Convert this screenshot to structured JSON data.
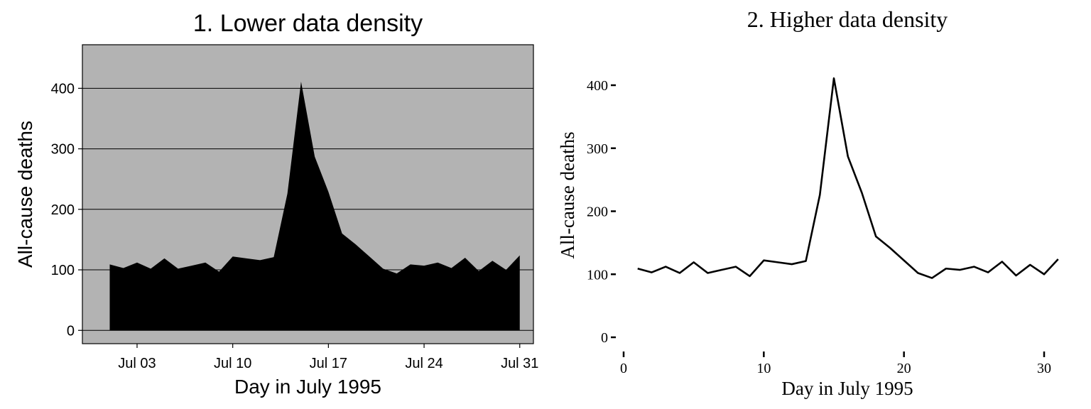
{
  "chart_data": [
    {
      "type": "area",
      "title": "1. Lower data density",
      "xlabel": "Day in July 1995",
      "ylabel": "All-cause deaths",
      "x_unit": "date",
      "x": [
        "1995-07-01",
        "1995-07-02",
        "1995-07-03",
        "1995-07-04",
        "1995-07-05",
        "1995-07-06",
        "1995-07-07",
        "1995-07-08",
        "1995-07-09",
        "1995-07-10",
        "1995-07-11",
        "1995-07-12",
        "1995-07-13",
        "1995-07-14",
        "1995-07-15",
        "1995-07-16",
        "1995-07-17",
        "1995-07-18",
        "1995-07-19",
        "1995-07-20",
        "1995-07-21",
        "1995-07-22",
        "1995-07-23",
        "1995-07-24",
        "1995-07-25",
        "1995-07-26",
        "1995-07-27",
        "1995-07-28",
        "1995-07-29",
        "1995-07-30",
        "1995-07-31"
      ],
      "values": [
        109,
        103,
        112,
        102,
        119,
        102,
        107,
        112,
        97,
        122,
        119,
        116,
        121,
        226,
        411,
        287,
        229,
        160,
        142,
        122,
        102,
        94,
        109,
        107,
        112,
        103,
        120,
        98,
        115,
        100,
        124
      ],
      "xlim": [
        "1995-06-29",
        "1995-08-01"
      ],
      "ylim": [
        -22,
        472
      ],
      "xticks": [
        "1995-07-03",
        "1995-07-10",
        "1995-07-17",
        "1995-07-24",
        "1995-07-31"
      ],
      "xtick_labels": [
        "Jul 03",
        "Jul 10",
        "Jul 17",
        "Jul 24",
        "Jul 31"
      ],
      "yticks": [
        0,
        100,
        200,
        300,
        400
      ],
      "ytick_labels": [
        "0",
        "100",
        "200",
        "300",
        "400"
      ],
      "grid": "horizontal",
      "legend": "none",
      "colors": {
        "panel": "#b3b3b3",
        "fill": "#000000",
        "grid": "#000000",
        "text": "#000000"
      }
    },
    {
      "type": "line",
      "title": "2. Higher data density",
      "xlabel": "Day in July 1995",
      "ylabel": "All-cause deaths",
      "x": [
        1,
        2,
        3,
        4,
        5,
        6,
        7,
        8,
        9,
        10,
        11,
        12,
        13,
        14,
        15,
        16,
        17,
        18,
        19,
        20,
        21,
        22,
        23,
        24,
        25,
        26,
        27,
        28,
        29,
        30,
        31
      ],
      "values": [
        109,
        103,
        112,
        102,
        119,
        102,
        107,
        112,
        97,
        122,
        119,
        116,
        121,
        226,
        411,
        287,
        229,
        160,
        142,
        122,
        102,
        94,
        109,
        107,
        112,
        103,
        120,
        98,
        115,
        100,
        124
      ],
      "xlim": [
        -0.5,
        31.5
      ],
      "ylim": [
        -22,
        472
      ],
      "xticks": [
        0,
        10,
        20,
        30
      ],
      "xtick_labels": [
        "0",
        "10",
        "20",
        "30"
      ],
      "yticks": [
        0,
        100,
        200,
        300,
        400
      ],
      "ytick_labels": [
        "0",
        "100",
        "200",
        "300",
        "400"
      ],
      "grid": "none",
      "legend": "none",
      "colors": {
        "line": "#000000",
        "text": "#000000"
      }
    }
  ]
}
